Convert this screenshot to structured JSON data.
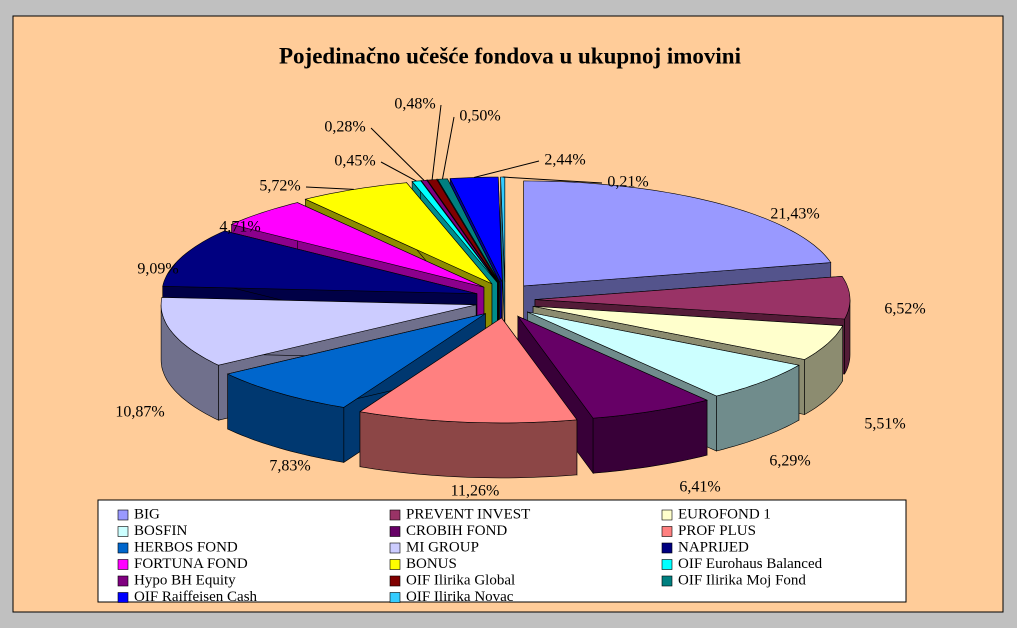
{
  "chart_data": {
    "type": "pie",
    "title": "Pojedinačno učešće fondova u ukupnoj imovini",
    "categories": [
      "BIG",
      "PREVENT INVEST",
      "EUROFOND 1",
      "BOSFIN",
      "CROBIH FOND",
      "PROF PLUS",
      "HERBOS FOND",
      "MI GROUP",
      "NAPRIJED",
      "FORTUNA FOND",
      "BONUS",
      "OIF Eurohaus Balanced",
      "Hypo BH Equity",
      "OIF Ilirika Global",
      "OIF Ilirika Moj Fond",
      "OIF Raiffeisen Cash",
      "OIF Ilirika Novac"
    ],
    "values": [
      21.43,
      6.52,
      5.51,
      6.29,
      6.41,
      11.26,
      7.83,
      10.87,
      9.09,
      4.71,
      5.72,
      0.45,
      0.28,
      0.48,
      0.5,
      2.44,
      0.21
    ],
    "value_labels": [
      "21,43%",
      "6,52%",
      "5,51%",
      "6,29%",
      "6,41%",
      "11,26%",
      "7,83%",
      "10,87%",
      "9,09%",
      "4,71%",
      "5,72%",
      "0,45%",
      "0,28%",
      "0,48%",
      "0,50%",
      "2,44%",
      "0,21%"
    ],
    "colors": [
      "#9999ff",
      "#993366",
      "#ffffcc",
      "#ccffff",
      "#660066",
      "#ff8080",
      "#0066cc",
      "#ccccff",
      "#000080",
      "#ff00ff",
      "#ffff00",
      "#00ffff",
      "#800080",
      "#800000",
      "#008080",
      "#0000ff",
      "#33ccff"
    ]
  }
}
